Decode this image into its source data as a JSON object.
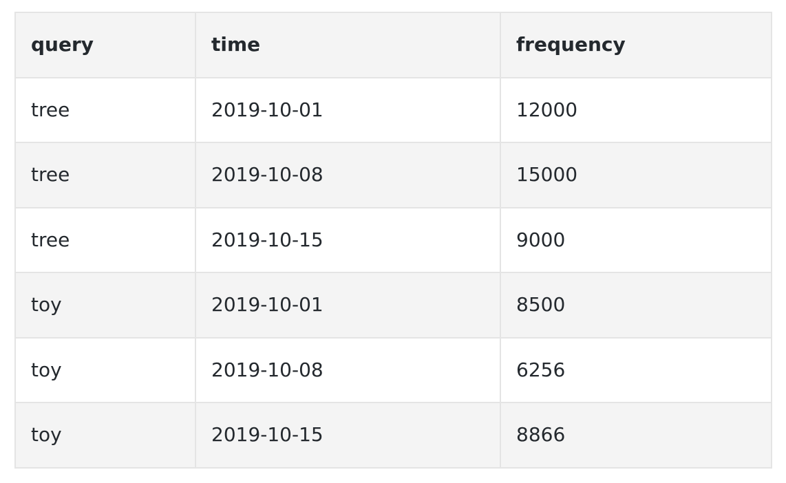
{
  "table": {
    "headers": [
      "query",
      "time",
      "frequency"
    ],
    "rows": [
      [
        "tree",
        "2019-10-01",
        "12000"
      ],
      [
        "tree",
        "2019-10-08",
        "15000"
      ],
      [
        "tree",
        "2019-10-15",
        "9000"
      ],
      [
        "toy",
        "2019-10-01",
        "8500"
      ],
      [
        "toy",
        "2019-10-08",
        "6256"
      ],
      [
        "toy",
        "2019-10-15",
        "8866"
      ]
    ]
  },
  "colors": {
    "header_bg": "#f4f4f4",
    "stripe_bg": "#f4f4f4",
    "row_bg": "#ffffff",
    "border": "#e4e4e4",
    "text": "#24292e"
  }
}
